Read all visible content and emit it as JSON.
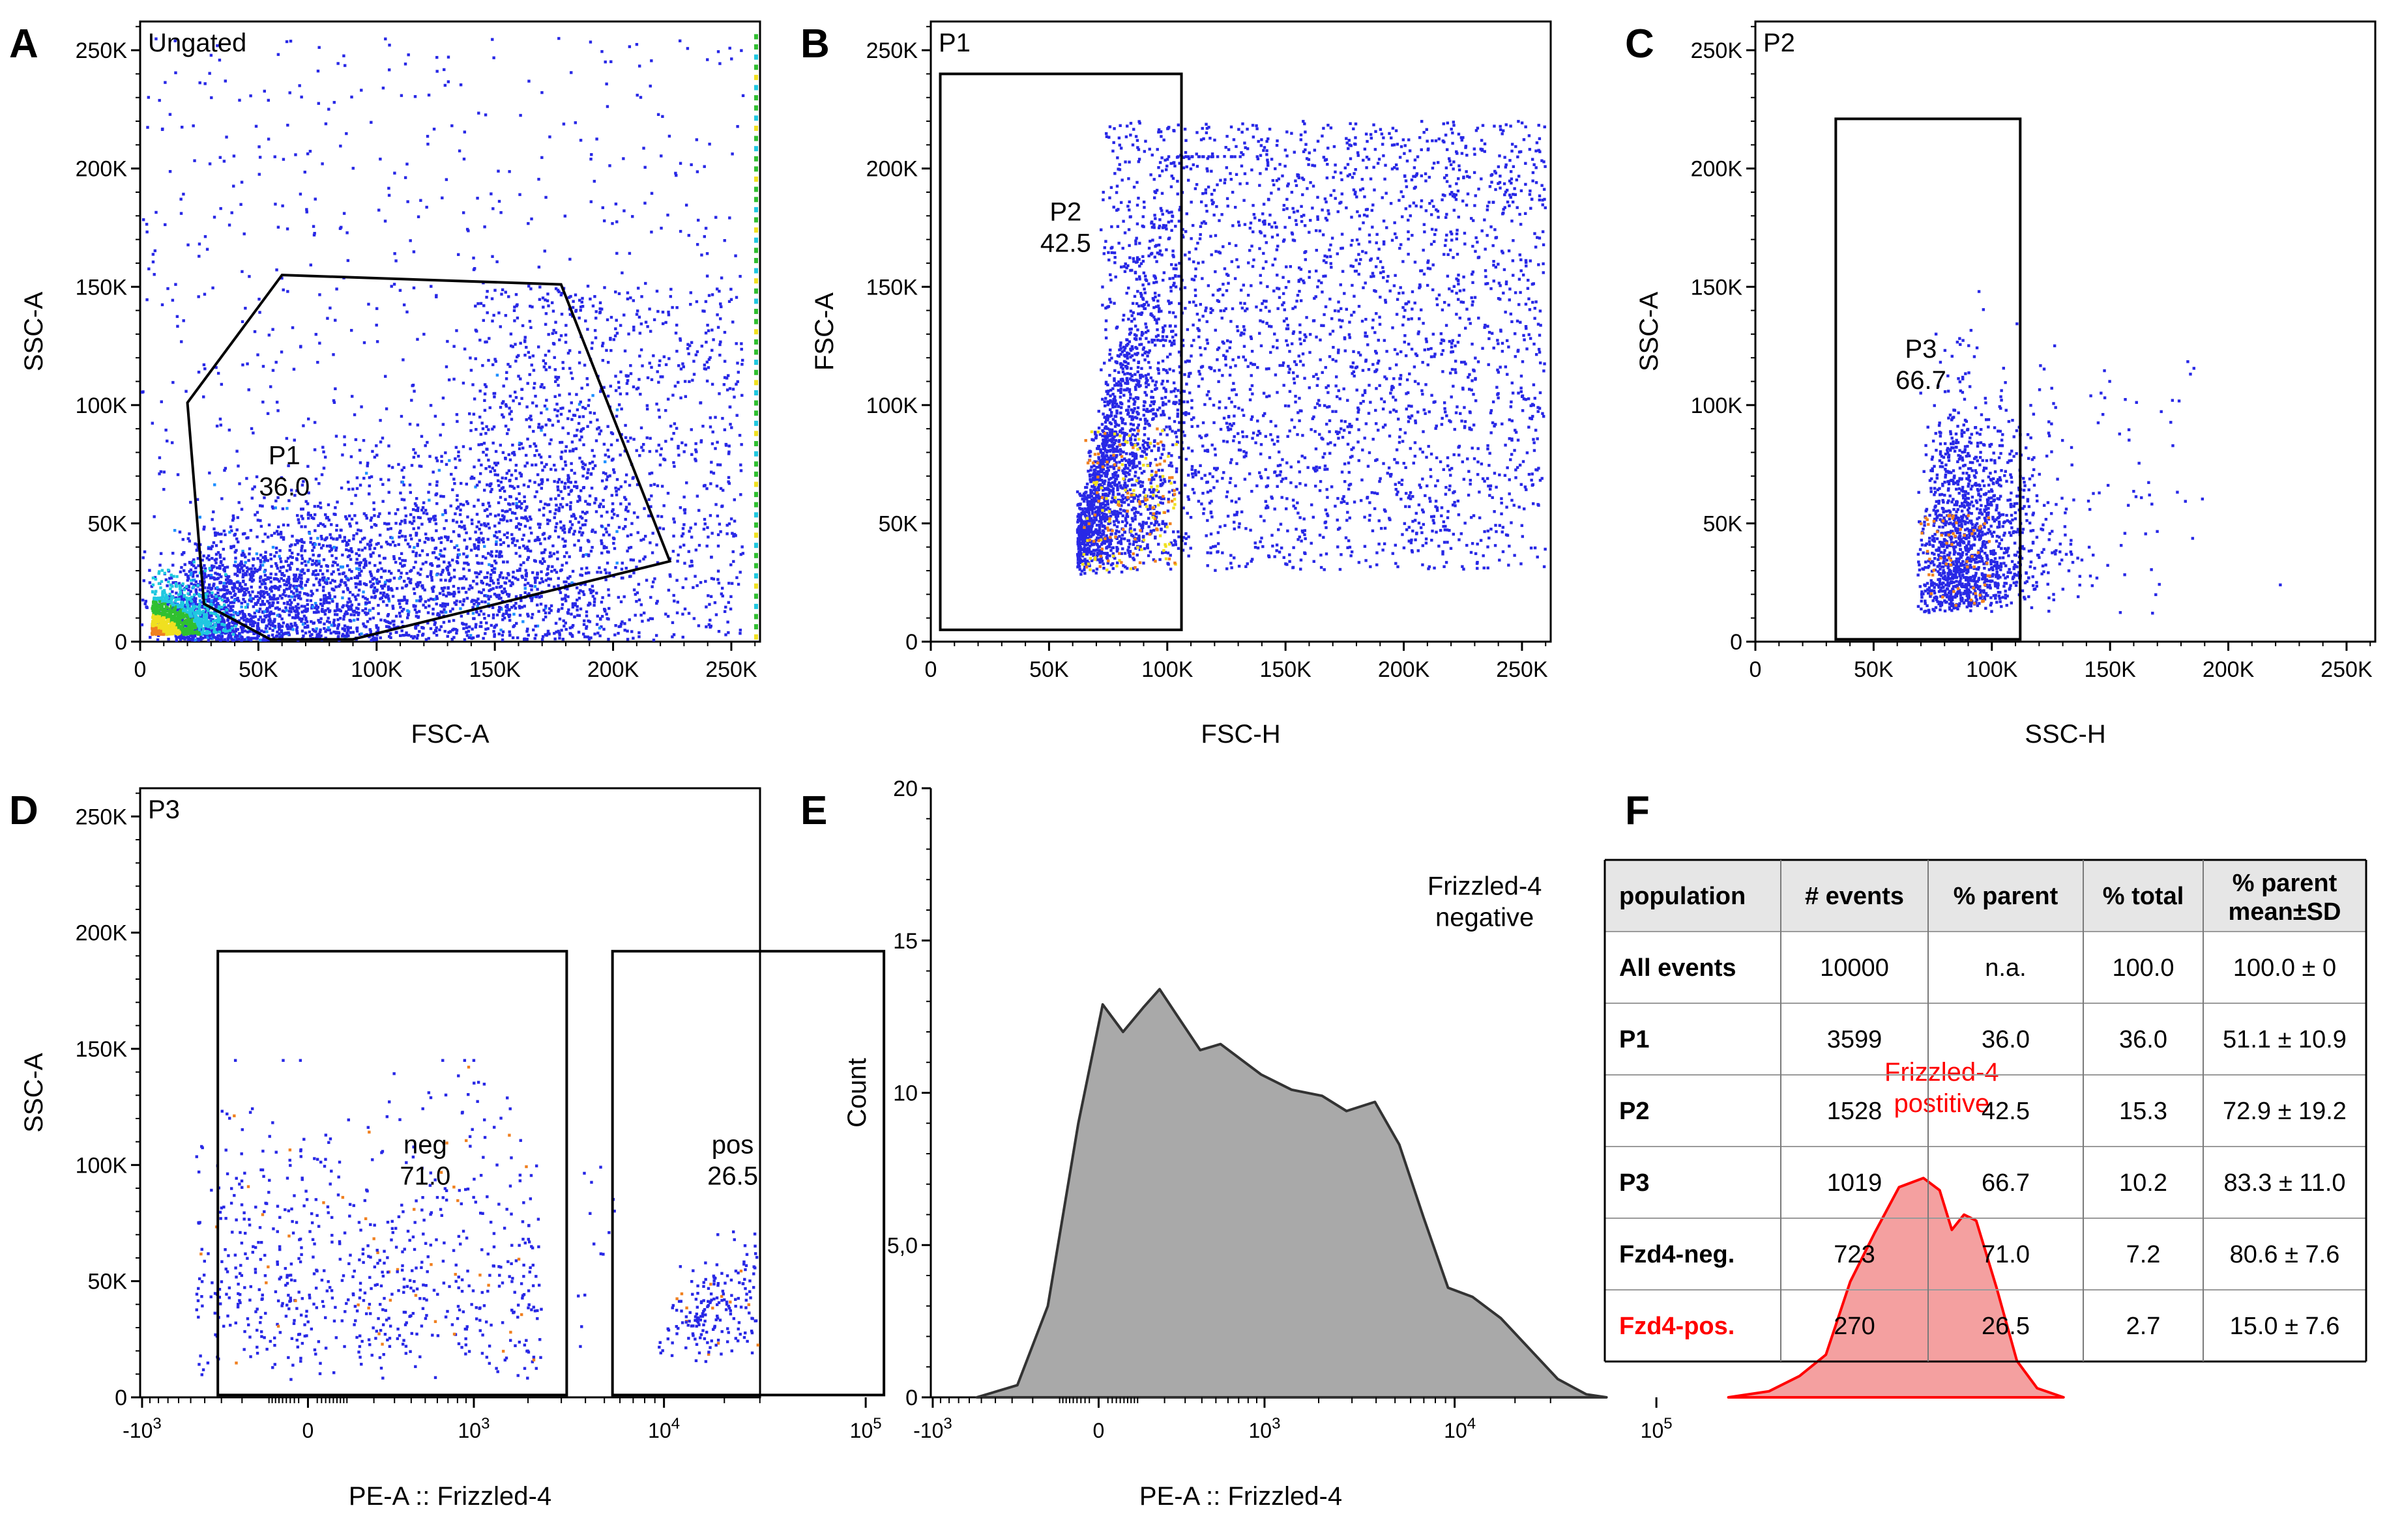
{
  "panels": {
    "A": {
      "letter": "A",
      "gate_label": "Ungated"
    },
    "B": {
      "letter": "B",
      "gate_label": "P1"
    },
    "C": {
      "letter": "C",
      "gate_label": "P2"
    },
    "D": {
      "letter": "D",
      "gate_label": "P3"
    },
    "E": {
      "letter": "E"
    },
    "F": {
      "letter": "F"
    }
  },
  "colors": {
    "dots_primary": "#2828e6",
    "dots_secondary": "#1e90ff",
    "dense_cyan": "#20c8e0",
    "dense_green": "#30c030",
    "dense_yellow": "#f0e020",
    "dense_orange": "#f08020",
    "hist_negative_fill": "#a9a9a9",
    "hist_positive_fill": "#f4a0a0",
    "hist_positive_line": "#ff0000",
    "table_header_bg": "#e6e6e6",
    "accent_red": "#ff0000"
  },
  "chart_data": [
    {
      "id": "A",
      "type": "scatter",
      "title": "Ungated",
      "xlabel": "FSC-A",
      "ylabel": "SSC-A",
      "xlim": [
        0,
        262144
      ],
      "ylim": [
        0,
        262144
      ],
      "xticks": [
        0,
        50000,
        100000,
        150000,
        200000,
        250000
      ],
      "xtick_labels": [
        "0",
        "50K",
        "100K",
        "150K",
        "200K",
        "250K"
      ],
      "yticks": [
        0,
        50000,
        100000,
        150000,
        200000,
        250000
      ],
      "ytick_labels": [
        "0",
        "50K",
        "100K",
        "150K",
        "200K",
        "250K"
      ],
      "gate": {
        "name": "P1",
        "value": "36.0",
        "shape": "polygon",
        "vertices": [
          [
            20000,
            101000
          ],
          [
            60000,
            155000
          ],
          [
            178000,
            151000
          ],
          [
            224000,
            34000
          ],
          [
            90000,
            1000
          ],
          [
            55000,
            1000
          ],
          [
            27000,
            16000
          ]
        ],
        "label_at": [
          61000,
          75000
        ]
      },
      "events": 10000
    },
    {
      "id": "B",
      "type": "scatter",
      "title": "P1",
      "xlabel": "FSC-H",
      "ylabel": "FSC-A",
      "xlim": [
        0,
        262144
      ],
      "ylim": [
        0,
        262144
      ],
      "xticks": [
        0,
        50000,
        100000,
        150000,
        200000,
        250000
      ],
      "xtick_labels": [
        "0",
        "50K",
        "100K",
        "150K",
        "200K",
        "250K"
      ],
      "yticks": [
        0,
        50000,
        100000,
        150000,
        200000,
        250000
      ],
      "ytick_labels": [
        "0",
        "50K",
        "100K",
        "150K",
        "200K",
        "250K"
      ],
      "gate": {
        "name": "P2",
        "value": "42.5",
        "shape": "rectangle",
        "x_range": [
          4000,
          106000
        ],
        "y_range": [
          5000,
          240000
        ],
        "label_at": [
          57000,
          178000
        ]
      },
      "events": 3599
    },
    {
      "id": "C",
      "type": "scatter",
      "title": "P2",
      "xlabel": "SSC-H",
      "ylabel": "SSC-A",
      "xlim": [
        0,
        262144
      ],
      "ylim": [
        0,
        262144
      ],
      "xticks": [
        0,
        50000,
        100000,
        150000,
        200000,
        250000
      ],
      "xtick_labels": [
        "0",
        "50K",
        "100K",
        "150K",
        "200K",
        "250K"
      ],
      "yticks": [
        0,
        50000,
        100000,
        150000,
        200000,
        250000
      ],
      "ytick_labels": [
        "0",
        "50K",
        "100K",
        "150K",
        "200K",
        "250K"
      ],
      "gate": {
        "name": "P3",
        "value": "66.7",
        "shape": "rectangle",
        "x_range": [
          34000,
          112000
        ],
        "y_range": [
          1000,
          221000
        ],
        "label_at": [
          70000,
          120000
        ]
      },
      "events": 1528
    },
    {
      "id": "D",
      "type": "scatter",
      "title": "P3",
      "xlabel": "PE-A :: Frizzled-4",
      "ylabel": "SSC-A",
      "xscale": "biexponential",
      "x_display_range": [
        -5.7,
        167
      ],
      "ylim": [
        0,
        262144
      ],
      "xticks": [
        -1000,
        1000,
        10000,
        100000
      ],
      "xtick_labels": [
        "-10^3",
        "10^3",
        "10^4",
        "10^5"
      ],
      "x_zero_label": "0",
      "yticks": [
        0,
        50000,
        100000,
        150000,
        200000,
        250000
      ],
      "ytick_labels": [
        "0",
        "50K",
        "100K",
        "150K",
        "200K",
        "250K"
      ],
      "gates": [
        {
          "name": "neg",
          "value": "71.0",
          "shape": "rectangle",
          "x_range": [
            -320,
            3200
          ],
          "y_range": [
            1000,
            192000
          ],
          "label_at": [
            500,
            105000
          ]
        },
        {
          "name": "pos",
          "value": "26.5",
          "shape": "rectangle",
          "x_range": [
            5500,
            123000
          ],
          "y_range": [
            1000,
            192000
          ],
          "label_at": [
            22000,
            105000
          ]
        }
      ],
      "events": 1019
    },
    {
      "id": "E",
      "type": "area",
      "xlabel": "PE-A :: Frizzled-4",
      "ylabel": "Count",
      "xscale": "biexponential",
      "x_display_range": [
        -5.7,
        167
      ],
      "ylim": [
        0,
        20
      ],
      "xticks": [
        -1000,
        1000,
        100000
      ],
      "xtick_labels": [
        "-10^3",
        "10^3",
        "10^5"
      ],
      "extra_xtick_label": "10^4",
      "x_zero_label": "0",
      "yticks": [
        0,
        5,
        10,
        15,
        20
      ],
      "ytick_labels": [
        "0",
        "5,0",
        "10",
        "15",
        "20"
      ],
      "series": [
        {
          "name": "Frizzled-4 negative",
          "label_line1": "Frizzled-4",
          "label_line2": "negative",
          "label_at": [
            1.9,
            16.5
          ],
          "points": [
            [
              -0.6,
              0
            ],
            [
              -0.4,
              0.4
            ],
            [
              -0.25,
              3
            ],
            [
              -0.1,
              9
            ],
            [
              0.02,
              12.9
            ],
            [
              0.12,
              12
            ],
            [
              0.22,
              12.8
            ],
            [
              0.3,
              13.4
            ],
            [
              0.38,
              12.6
            ],
            [
              0.5,
              11.4
            ],
            [
              0.6,
              11.6
            ],
            [
              0.68,
              11.2
            ],
            [
              0.8,
              10.6
            ],
            [
              0.95,
              10.1
            ],
            [
              1.1,
              9.9
            ],
            [
              1.22,
              9.4
            ],
            [
              1.36,
              9.7
            ],
            [
              1.48,
              8.3
            ],
            [
              1.6,
              5.9
            ],
            [
              1.72,
              3.6
            ],
            [
              1.84,
              3.3
            ],
            [
              1.98,
              2.6
            ],
            [
              2.12,
              1.6
            ],
            [
              2.26,
              0.6
            ],
            [
              2.4,
              0.1
            ],
            [
              2.5,
              0
            ]
          ]
        },
        {
          "name": "Frizzled-4 postitive",
          "label_line1": "Frizzled-4",
          "label_line2": "postitive",
          "label_at": [
            4.15,
            10.4
          ],
          "points": [
            [
              3.1,
              0
            ],
            [
              3.3,
              0.2
            ],
            [
              3.45,
              0.7
            ],
            [
              3.58,
              1.4
            ],
            [
              3.7,
              3.8
            ],
            [
              3.82,
              5.4
            ],
            [
              3.94,
              6.9
            ],
            [
              4.06,
              7.2
            ],
            [
              4.14,
              6.8
            ],
            [
              4.2,
              5.5
            ],
            [
              4.26,
              6.0
            ],
            [
              4.32,
              5.8
            ],
            [
              4.42,
              3.6
            ],
            [
              4.52,
              1.2
            ],
            [
              4.62,
              0.3
            ],
            [
              4.75,
              0
            ]
          ]
        }
      ]
    }
  ],
  "table": {
    "headers": [
      "population",
      "# events",
      "% parent",
      "% total",
      "% parent mean±SD"
    ],
    "header_last_line1": "% parent",
    "header_last_line2": "mean±SD",
    "rows": [
      [
        "All events",
        "10000",
        "n.a.",
        "100.0",
        "100.0 ± 0"
      ],
      [
        "P1",
        "3599",
        "36.0",
        "36.0",
        "51.1 ± 10.9"
      ],
      [
        "P2",
        "1528",
        "42.5",
        "15.3",
        "72.9 ± 19.2"
      ],
      [
        "P3",
        "1019",
        "66.7",
        "10.2",
        "83.3 ± 11.0"
      ],
      [
        "Fzd4-neg.",
        "723",
        "71.0",
        "7.2",
        "80.6 ± 7.6"
      ],
      [
        "Fzd4-pos.",
        "270",
        "26.5",
        "2.7",
        "15.0 ± 7.6"
      ]
    ],
    "highlight_row": 5
  }
}
